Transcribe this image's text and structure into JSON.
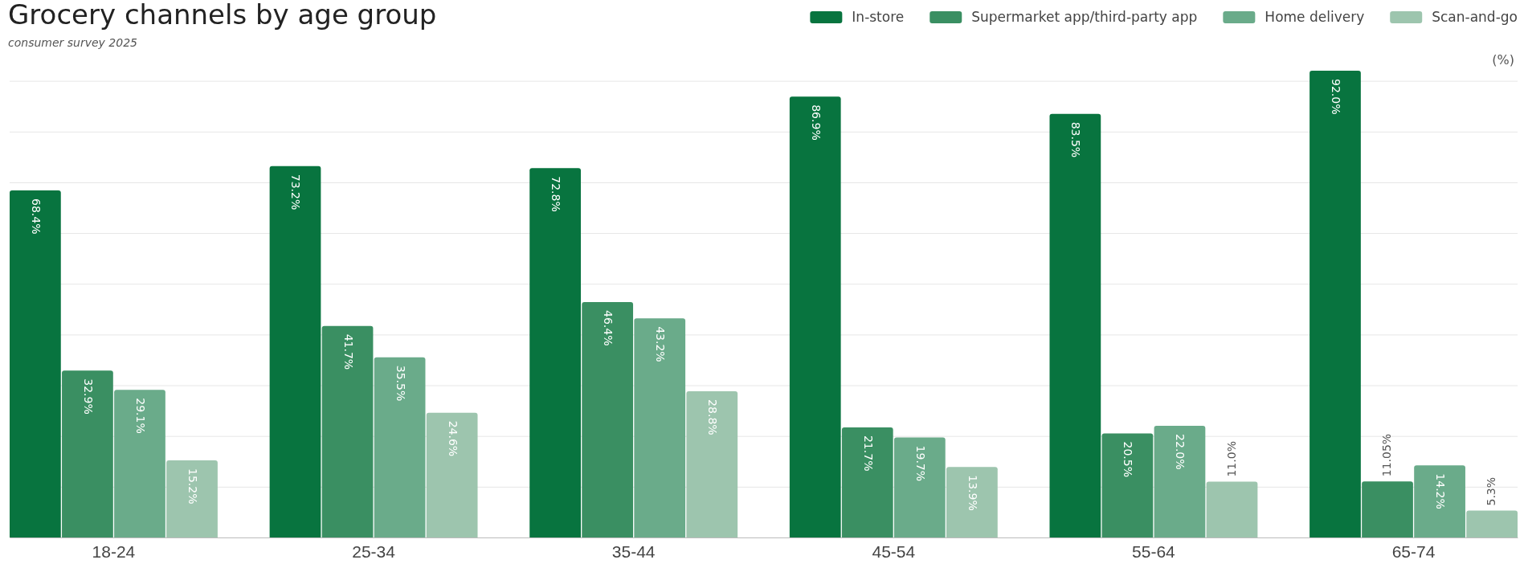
{
  "chart_data": {
    "type": "bar",
    "title": "Grocery channels by age group",
    "subtitle": "consumer survey 2025",
    "ylabel": "(%)",
    "categories": [
      "18-24",
      "25-34",
      "35-44",
      "45-54",
      "55-64",
      "65-74"
    ],
    "series": [
      {
        "name": "In-store",
        "color": "#08743f",
        "values": [
          68.4,
          73.2,
          72.8,
          86.9,
          83.5,
          92.0
        ],
        "value_labels": [
          "68.4%",
          "73.2%",
          "72.8%",
          "86.9%",
          "83.5%",
          "92.0%"
        ]
      },
      {
        "name": "Supermarket app/third-party app",
        "color": "#3a8f62",
        "values": [
          32.9,
          41.7,
          46.4,
          21.7,
          20.5,
          11.05
        ],
        "value_labels": [
          "32.9%",
          "41.7%",
          "46.4%",
          "21.7%",
          "20.5%",
          "11.05%"
        ]
      },
      {
        "name": "Home delivery",
        "color": "#6aab8a",
        "values": [
          29.1,
          35.5,
          43.2,
          19.7,
          22.0,
          14.2
        ],
        "value_labels": [
          "29.1%",
          "35.5%",
          "43.2%",
          "19.7%",
          "22.0%",
          "14.2%"
        ]
      },
      {
        "name": "Scan-and-go",
        "color": "#9dc5ae",
        "values": [
          15.2,
          24.6,
          28.8,
          13.9,
          11.0,
          5.3
        ],
        "value_labels": [
          "15.2%",
          "24.6%",
          "28.8%",
          "13.9%",
          "11.0%",
          "5.3%"
        ]
      }
    ],
    "yticks": [
      {
        "value": 0,
        "label": null
      },
      {
        "value": 10,
        "label": null
      },
      {
        "value": 20,
        "label": null
      },
      {
        "value": 30,
        "label": null
      },
      {
        "value": 40,
        "label": null
      },
      {
        "value": 50,
        "label": null
      },
      {
        "value": 60,
        "label": null
      },
      {
        "value": 70,
        "label": null
      },
      {
        "value": 80,
        "label": null
      },
      {
        "value": 90,
        "label": null
      }
    ],
    "grid": "y",
    "tick_labels": "x",
    "legend": "top right"
  }
}
